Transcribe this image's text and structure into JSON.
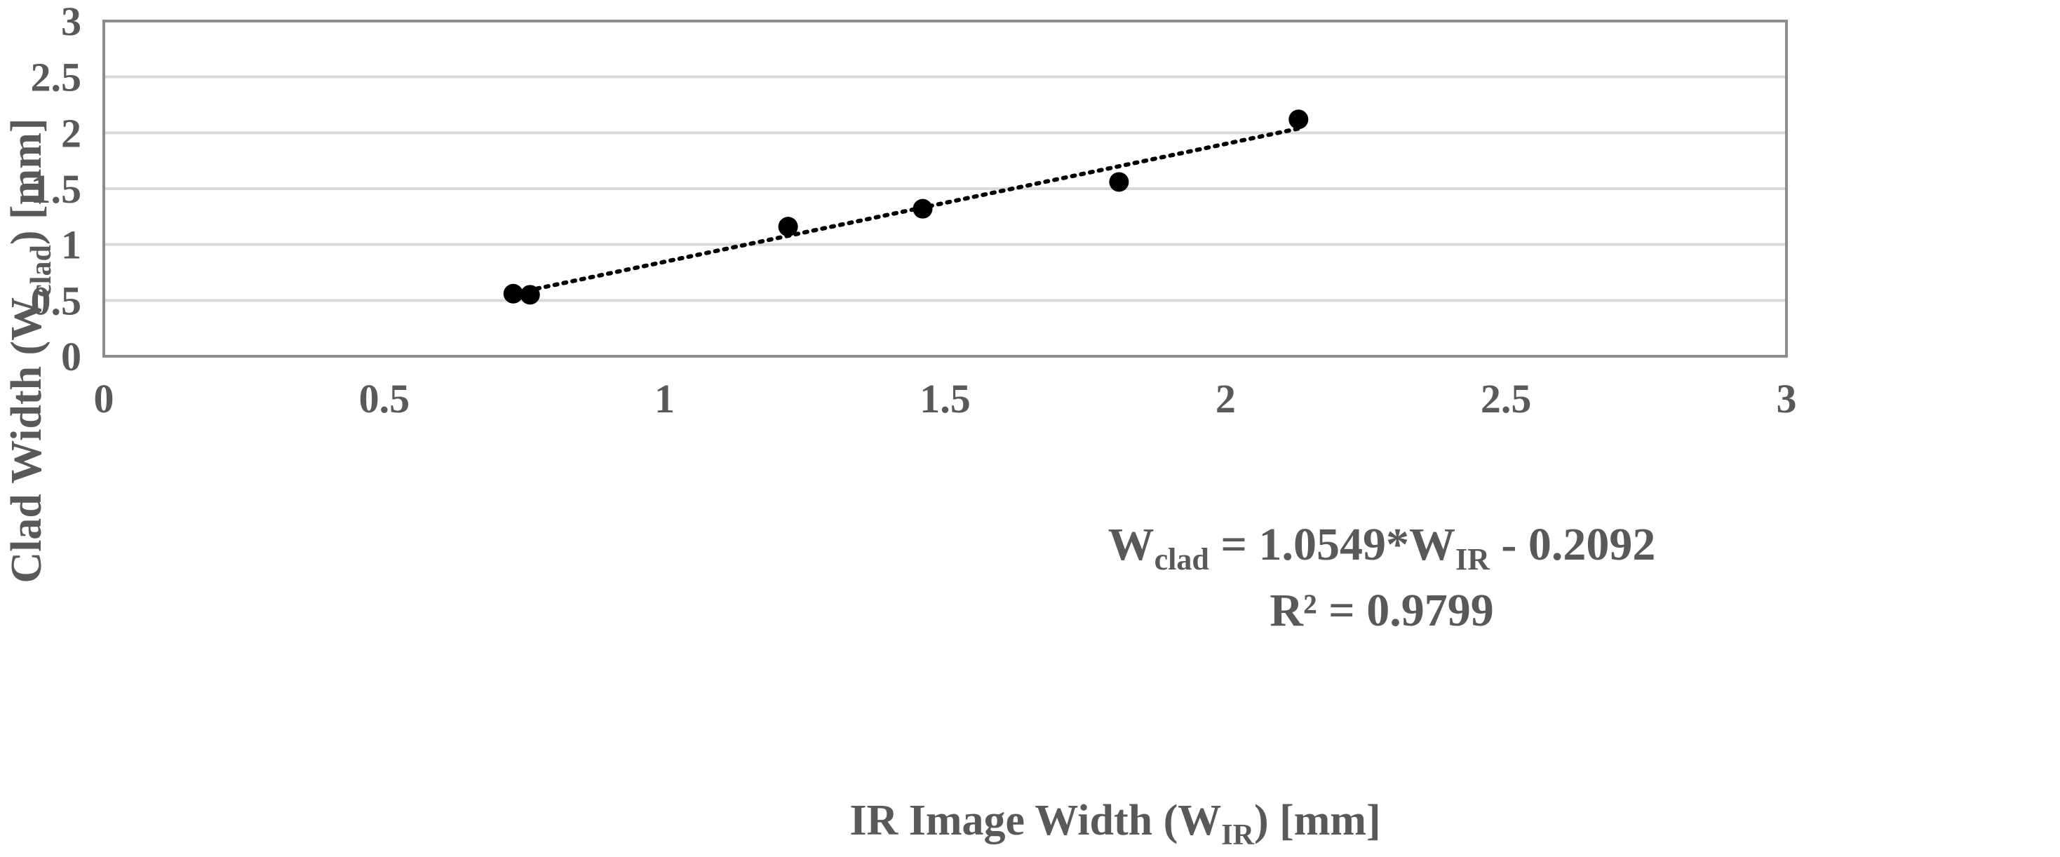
{
  "chart_data": {
    "type": "scatter",
    "xlabel": {
      "prefix": "IR Image Width (W",
      "sub": "IR",
      "suffix": ") [mm]"
    },
    "ylabel": {
      "prefix": "Clad Width (W",
      "sub": "clad",
      "suffix": ") [mm]"
    },
    "xlim": [
      0,
      3
    ],
    "ylim": [
      0,
      3
    ],
    "x_ticks": [
      "0",
      "0.5",
      "1",
      "1.5",
      "2",
      "2.5",
      "3"
    ],
    "y_ticks": [
      "0",
      "0.5",
      "1",
      "1.5",
      "2",
      "2.5",
      "3"
    ],
    "grid": true,
    "legend": "none",
    "marker_color": "#000000",
    "points": [
      {
        "x": 0.73,
        "y": 0.56
      },
      {
        "x": 0.76,
        "y": 0.55
      },
      {
        "x": 1.22,
        "y": 1.16
      },
      {
        "x": 1.46,
        "y": 1.32
      },
      {
        "x": 1.81,
        "y": 1.56
      },
      {
        "x": 2.13,
        "y": 2.12
      }
    ],
    "trendline": {
      "type": "linear",
      "style": "dotted",
      "slope": 1.0549,
      "intercept": -0.2092,
      "x_range": [
        0.74,
        2.13
      ],
      "equation": {
        "w": "W",
        "clad_sub": "clad",
        "mid": " = 1.0549*W",
        "ir_sub": "IR",
        "tail": " - 0.2092"
      },
      "r2_label": "R² = 0.9799"
    }
  }
}
